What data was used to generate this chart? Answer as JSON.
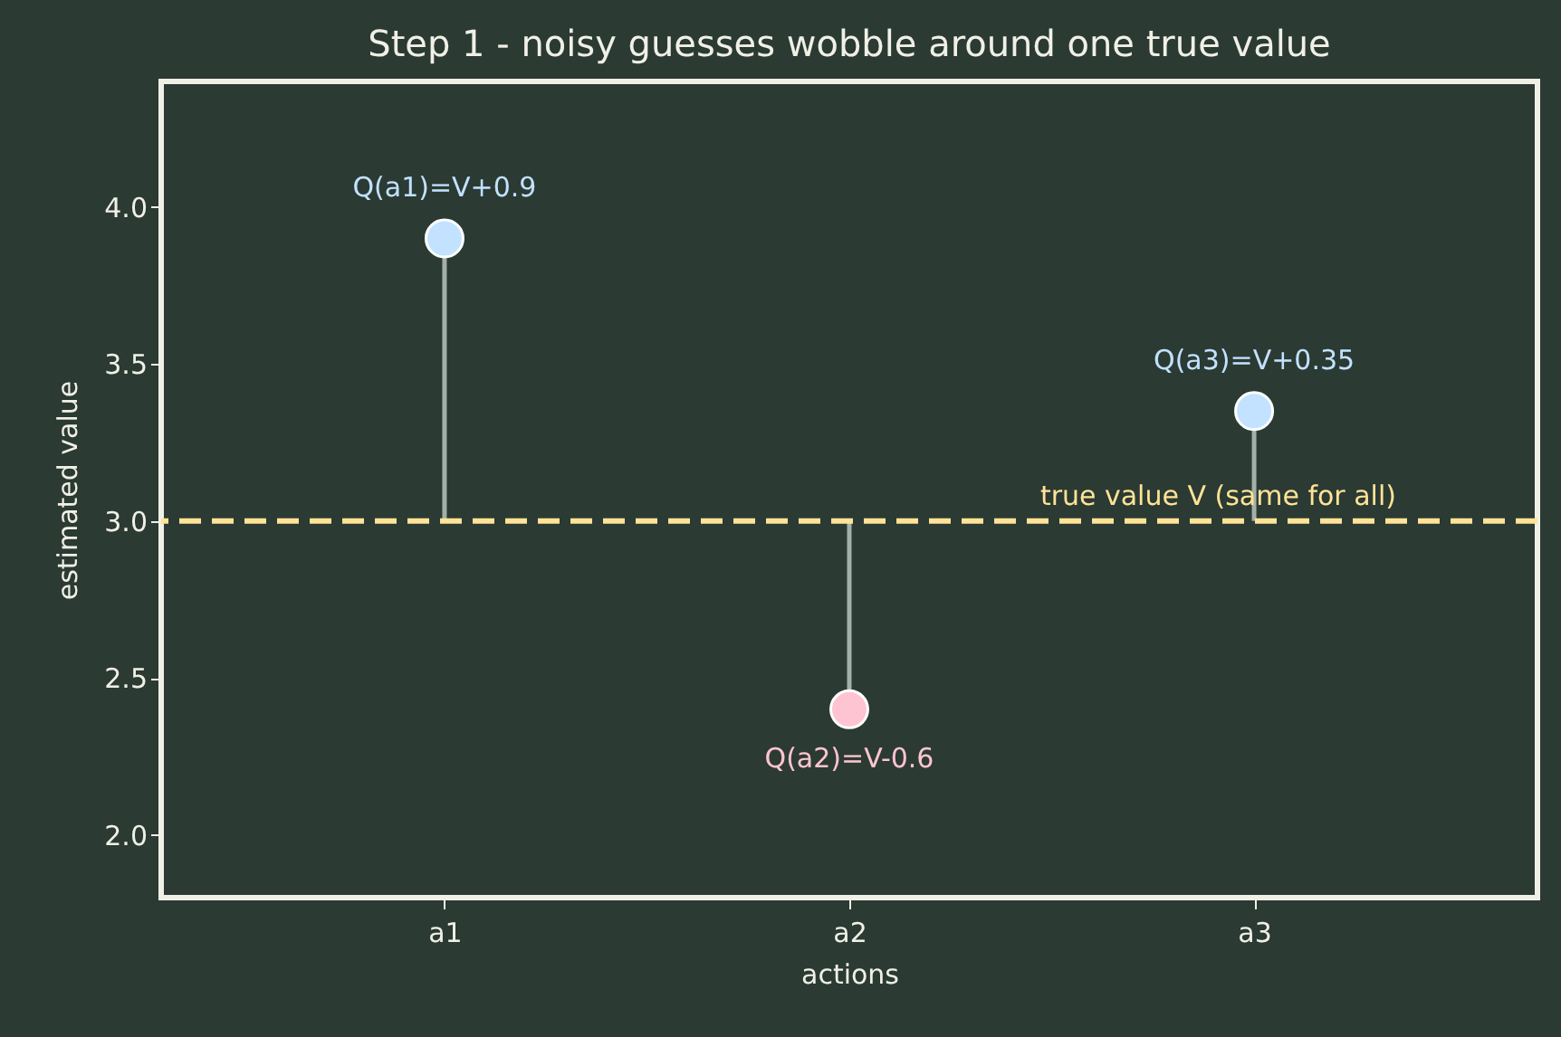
{
  "chart_data": {
    "type": "lollipop",
    "title": "Step 1 - noisy guesses wobble around one true value",
    "xlabel": "actions",
    "ylabel": "estimated value",
    "categories": [
      "a1",
      "a2",
      "a3"
    ],
    "values": [
      3.9,
      2.4,
      3.35
    ],
    "colors": [
      "#c2e2ff",
      "#ffc4d2",
      "#c2e2ff"
    ],
    "ylim": [
      1.8,
      4.4
    ],
    "yticks": [
      {
        "value": 2,
        "label": "2.0"
      },
      2.5,
      {
        "value": 3,
        "label": "3.0"
      },
      3.5,
      {
        "value": 4,
        "label": "4.0"
      }
    ],
    "grid": false,
    "marker": "circle",
    "ref_lines": [
      {
        "axis": "y",
        "value": 3.0,
        "label": "true value V (same for all)",
        "color": "#ffe397",
        "line_style": "dashed"
      }
    ],
    "annotations": [
      {
        "text": "Q(a1)=V+0.9",
        "x": "a1",
        "y": 3.9
      },
      {
        "text": "Q(a2)=V-0.6",
        "x": "a2",
        "y": 2.4
      },
      {
        "text": "Q(a3)=V+0.35",
        "x": "a3",
        "y": 3.35
      }
    ]
  }
}
